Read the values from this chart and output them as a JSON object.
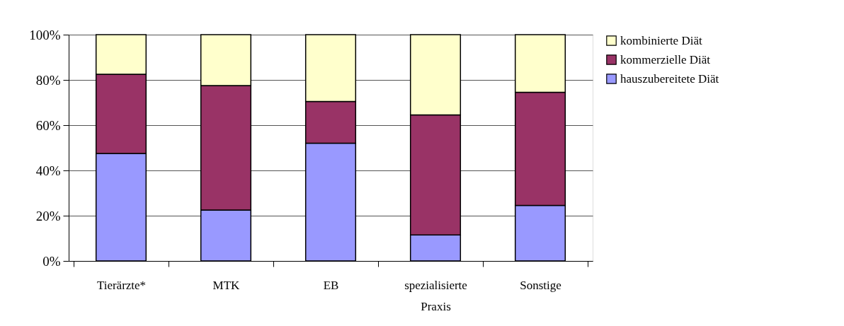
{
  "chart_data": {
    "type": "bar",
    "stacked": true,
    "categories": [
      "Tierärzte*",
      "MTK",
      "EB",
      "spezialisierte Praxis",
      "Sonstige"
    ],
    "series": [
      {
        "name": "hauszubereitete Diät",
        "color": "#9999ff",
        "values": [
          47.5,
          22.5,
          52,
          11.5,
          24.5
        ]
      },
      {
        "name": "kommerzielle Diät",
        "color": "#993366",
        "values": [
          35,
          55,
          18.5,
          53,
          50
        ]
      },
      {
        "name": "kombinierte Diät",
        "color": "#ffffcc",
        "values": [
          17.5,
          22.5,
          29.5,
          35.5,
          25.5
        ]
      }
    ],
    "ylim": [
      0,
      100
    ],
    "yticks": [
      {
        "value": 0,
        "label": "0%"
      },
      {
        "value": 20,
        "label": "20%"
      },
      {
        "value": 40,
        "label": "40%"
      },
      {
        "value": 60,
        "label": "60%"
      },
      {
        "value": 80,
        "label": "80%"
      },
      {
        "value": 100,
        "label": "100%"
      }
    ],
    "grid": "y",
    "legend": "right"
  }
}
